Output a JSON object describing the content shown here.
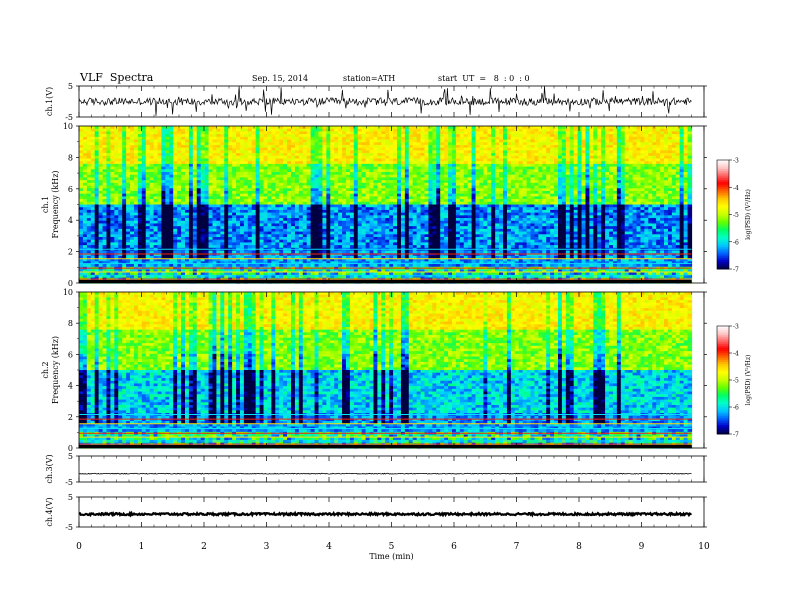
{
  "header": {
    "title": "VLF  Spectra",
    "date": "Sep. 15, 2014",
    "station": "station=ATH",
    "start": "start  UT  =   8  : 0  : 0"
  },
  "chart_data": {
    "type": "heatmap",
    "x_axis": {
      "label": "Time  (min)",
      "range": [
        0,
        10
      ],
      "ticks": [
        "0",
        "1",
        "2",
        "3",
        "4",
        "5",
        "6",
        "7",
        "8",
        "9",
        "10"
      ],
      "data_end": 9.8
    },
    "panels": [
      {
        "id": "ch1-waveform",
        "type": "line",
        "ylabel": "ch.1(V)",
        "ylim": [
          -5,
          5
        ],
        "ticks": [
          "5",
          "-5"
        ],
        "baseline": 0,
        "amplitude": 1.2,
        "trace": "black"
      },
      {
        "id": "ch1-spectrogram",
        "type": "heatmap",
        "ylabel": [
          "ch.1",
          "Frequency  (kHz)"
        ],
        "ylim": [
          0,
          10
        ],
        "ticks": [
          "0",
          "2",
          "4",
          "6",
          "8",
          "10"
        ],
        "colorbar": {
          "label": "log(PSD) (V²/Hz)",
          "range": [
            -7,
            -3
          ],
          "ticks": [
            "-3",
            "-4",
            "-5",
            "-6",
            "-7"
          ]
        }
      },
      {
        "id": "ch2-spectrogram",
        "type": "heatmap",
        "ylabel": [
          "ch.2",
          "Frequency  (kHz)"
        ],
        "ylim": [
          0,
          10
        ],
        "ticks": [
          "0",
          "2",
          "4",
          "6",
          "8",
          "10"
        ],
        "colorbar": {
          "label": "log(PSD) (V²/Hz)",
          "range": [
            -7,
            -3
          ],
          "ticks": [
            "-3",
            "-4",
            "-5",
            "-6",
            "-7"
          ]
        }
      },
      {
        "id": "ch3-waveform",
        "type": "line",
        "ylabel": "ch.3(V)",
        "ylim": [
          -5,
          5
        ],
        "ticks": [
          "5",
          "-5"
        ],
        "baseline": -1.8,
        "amplitude": 0.15,
        "trace": "black"
      },
      {
        "id": "ch4-waveform",
        "type": "line",
        "ylabel": "ch.4(V)",
        "ylim": [
          -5,
          5
        ],
        "ticks": [
          "5",
          "-5"
        ],
        "baseline": -0.7,
        "amplitude": 0.35,
        "trace": "black"
      }
    ],
    "colormap": [
      "#000040",
      "#0000c8",
      "#0064ff",
      "#00c8ff",
      "#00ffc8",
      "#00ff64",
      "#64ff00",
      "#c8ff00",
      "#ffff00",
      "#ffc800",
      "#ff6400",
      "#ff0000",
      "#ff6464",
      "#ffc8c8",
      "#ffffff"
    ],
    "grid": false
  }
}
